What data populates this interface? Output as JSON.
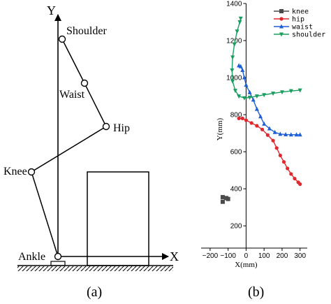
{
  "diagram_a": {
    "panel_label": "(a)",
    "axis_y_label": "Y",
    "axis_x_label": "X",
    "joints": {
      "shoulder": "Shoulder",
      "waist": "Waist",
      "hip": "Hip",
      "knee": "Knee",
      "ankle": "Ankle"
    }
  },
  "chart_b": {
    "panel_label": "(b)",
    "chart_data": {
      "type": "line",
      "xlabel": "X(mm)",
      "ylabel": "Y(mm)",
      "xlim": [
        -250,
        340
      ],
      "ylim": [
        80,
        1400
      ],
      "x_ticks": [
        -200,
        -100,
        0,
        100,
        200,
        300
      ],
      "y_ticks": [
        200,
        400,
        600,
        800,
        1000,
        1200,
        1400
      ],
      "legend_position": "top-right",
      "series": [
        {
          "name": "knee",
          "color": "#4a4a4a",
          "marker": "square",
          "points": [
            [
              -130,
              330
            ],
            [
              -110,
              350
            ],
            [
              -130,
              355
            ],
            [
              -100,
              345
            ]
          ]
        },
        {
          "name": "hip",
          "color": "#e0282e",
          "marker": "circle",
          "points": [
            [
              -40,
              780
            ],
            [
              -20,
              780
            ],
            [
              0,
              770
            ],
            [
              30,
              755
            ],
            [
              60,
              740
            ],
            [
              90,
              720
            ],
            [
              120,
              690
            ],
            [
              150,
              660
            ],
            [
              170,
              620
            ],
            [
              190,
              580
            ],
            [
              210,
              545
            ],
            [
              230,
              510
            ],
            [
              250,
              480
            ],
            [
              270,
              455
            ],
            [
              290,
              435
            ],
            [
              300,
              425
            ]
          ]
        },
        {
          "name": "waist",
          "color": "#1f5fd6",
          "marker": "triangle-up",
          "points": [
            [
              -40,
              1065
            ],
            [
              -30,
              1060
            ],
            [
              -20,
              1040
            ],
            [
              -10,
              1000
            ],
            [
              0,
              960
            ],
            [
              20,
              920
            ],
            [
              40,
              880
            ],
            [
              60,
              830
            ],
            [
              80,
              790
            ],
            [
              100,
              750
            ],
            [
              130,
              725
            ],
            [
              160,
              705
            ],
            [
              190,
              695
            ],
            [
              220,
              693
            ],
            [
              250,
              692
            ],
            [
              280,
              692
            ],
            [
              300,
              692
            ]
          ]
        },
        {
          "name": "shoulder",
          "color": "#1a9e5f",
          "marker": "triangle-down",
          "points": [
            [
              -30,
              1320
            ],
            [
              -35,
              1300
            ],
            [
              -50,
              1250
            ],
            [
              -65,
              1180
            ],
            [
              -75,
              1110
            ],
            [
              -78,
              1040
            ],
            [
              -75,
              980
            ],
            [
              -60,
              930
            ],
            [
              -40,
              900
            ],
            [
              -10,
              890
            ],
            [
              20,
              893
            ],
            [
              60,
              900
            ],
            [
              100,
              907
            ],
            [
              150,
              915
            ],
            [
              200,
              922
            ],
            [
              250,
              928
            ],
            [
              300,
              932
            ]
          ]
        }
      ]
    }
  }
}
